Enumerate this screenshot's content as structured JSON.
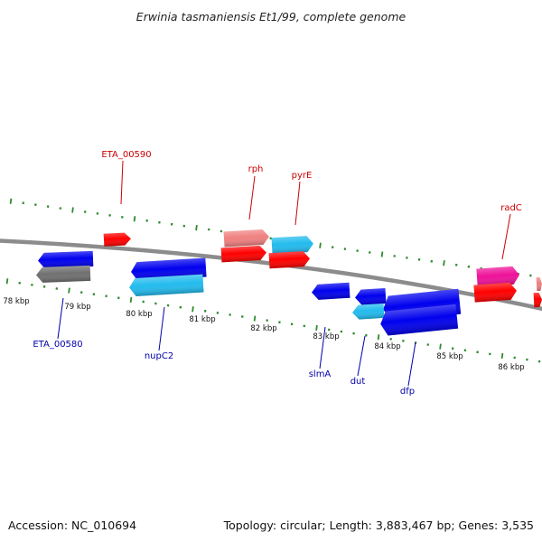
{
  "header": {
    "title": "Erwinia tasmaniensis Et1/99, complete genome"
  },
  "footer": {
    "accession": "Accession: NC_010694",
    "summary": "Topology: circular; Length: 3,883,467 bp; Genes: 3,535"
  },
  "colors": {
    "backbone": "#8c8c8c",
    "tick": "#2e8b2e",
    "forward_label": "#cc0000",
    "reverse_label": "#0000aa",
    "red": "#ff0000",
    "salmon": "#f08080",
    "cyan": "#22bbee",
    "blue": "#0000ee",
    "gray": "#707070",
    "magenta": "#ee1199"
  },
  "scale": {
    "tick_labels": [
      "78 kbp",
      "79 kbp",
      "80 kbp",
      "81 kbp",
      "82 kbp",
      "83 kbp",
      "84 kbp",
      "85 kbp",
      "86 kbp"
    ]
  },
  "features": [
    {
      "id": "f1",
      "strand": "+",
      "color": "red",
      "label": "ETA_00590"
    },
    {
      "id": "f2",
      "strand": "+",
      "color": "salmon",
      "label": "rph"
    },
    {
      "id": "f3",
      "strand": "+",
      "color": "red",
      "label": ""
    },
    {
      "id": "f4",
      "strand": "+",
      "color": "cyan",
      "label": "pyrE"
    },
    {
      "id": "f5",
      "strand": "+",
      "color": "red",
      "label": ""
    },
    {
      "id": "f6",
      "strand": "+",
      "color": "magenta",
      "label": "radC"
    },
    {
      "id": "f7",
      "strand": "+",
      "color": "red",
      "label": ""
    },
    {
      "id": "f8",
      "strand": "+",
      "color": "salmon",
      "label": ""
    },
    {
      "id": "f9",
      "strand": "+",
      "color": "red",
      "label": ""
    },
    {
      "id": "r1",
      "strand": "-",
      "color": "blue",
      "label": ""
    },
    {
      "id": "r2",
      "strand": "-",
      "color": "gray",
      "label": "ETA_00580"
    },
    {
      "id": "r3",
      "strand": "-",
      "color": "blue",
      "label": ""
    },
    {
      "id": "r4",
      "strand": "-",
      "color": "cyan",
      "label": "nupC2"
    },
    {
      "id": "r5",
      "strand": "-",
      "color": "blue",
      "label": "slmA"
    },
    {
      "id": "r6",
      "strand": "-",
      "color": "blue",
      "label": ""
    },
    {
      "id": "r7",
      "strand": "-",
      "color": "blue",
      "label": ""
    },
    {
      "id": "r8",
      "strand": "-",
      "color": "cyan",
      "label": "dut"
    },
    {
      "id": "r9",
      "strand": "-",
      "color": "blue",
      "label": "dfp"
    }
  ]
}
